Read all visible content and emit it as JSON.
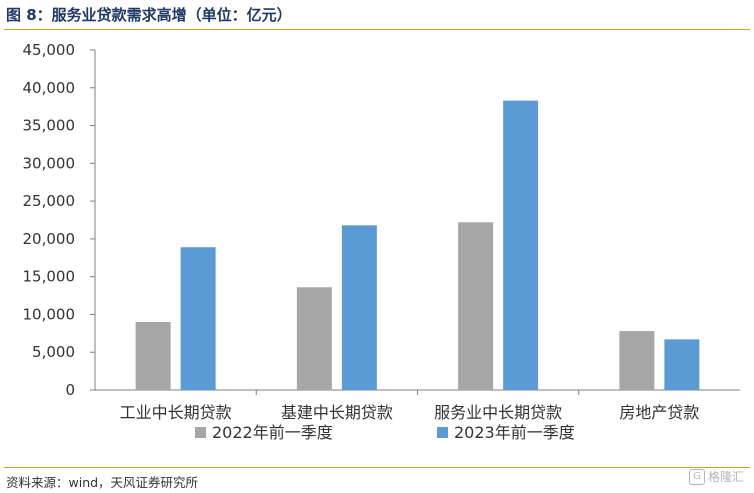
{
  "figure": {
    "title": "图 8：服务业贷款需求高增（单位：亿元）",
    "source": "资料来源：wind，天风证券研究所",
    "watermark": "格隆汇"
  },
  "colors": {
    "series_2022": "#a6a6a6",
    "series_2023": "#5b9bd5",
    "rule": "#c9a227",
    "title": "#1f3a66"
  },
  "chart_data": {
    "type": "bar",
    "title": "服务业贷款需求高增（单位：亿元）",
    "categories": [
      "工业中长期贷款",
      "基建中长期贷款",
      "服务业中长期贷款",
      "房地产贷款"
    ],
    "series": [
      {
        "name": "2022年前一季度",
        "values": [
          9000,
          13600,
          22200,
          7800
        ]
      },
      {
        "name": "2023年前一季度",
        "values": [
          18900,
          21800,
          38300,
          6700
        ]
      }
    ],
    "ylim": [
      0,
      45000
    ],
    "yticks": [
      "0",
      "5,000",
      "10,000",
      "15,000",
      "20,000",
      "25,000",
      "30,000",
      "35,000",
      "40,000",
      "45,000"
    ],
    "xlabel": "",
    "ylabel": "",
    "grid": false,
    "legend": "bottom"
  }
}
